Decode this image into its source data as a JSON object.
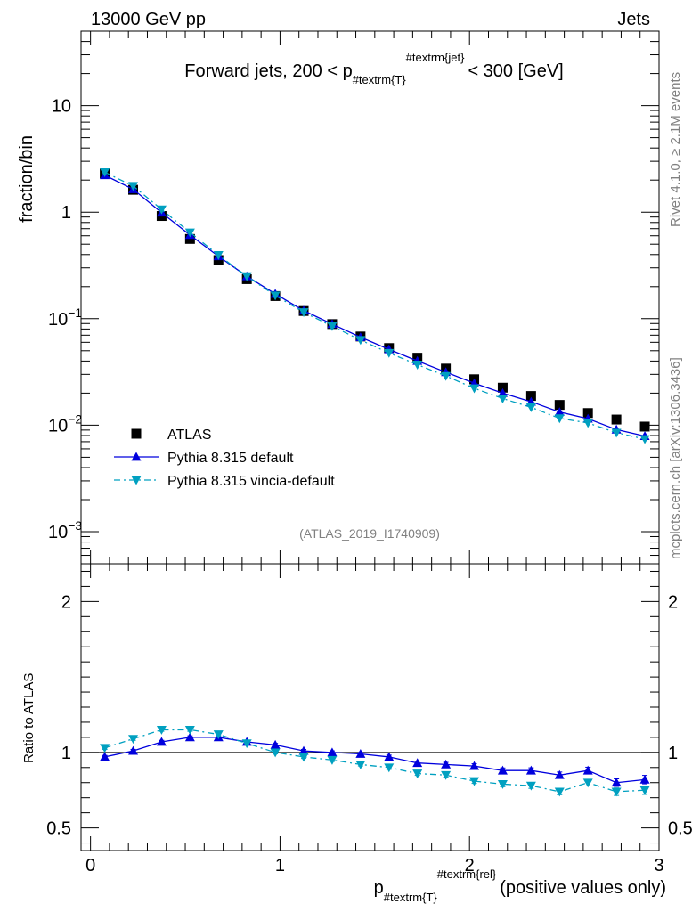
{
  "header": {
    "left": "13000 GeV pp",
    "right": "Jets"
  },
  "side_labels": {
    "rivet": "Rivet 4.1.0, ≥ 2.1M events",
    "mcplots": "mcplots.cern.ch [arXiv:1306.3436]"
  },
  "chart_data": {
    "type": "scatter",
    "title": {
      "prefix": "Forward jets, 200 < p",
      "sub": "#textrm{T}",
      "sup": "#textrm{jet}",
      "suffix": "< 300 [GeV]"
    },
    "analysis_id": "(ATLAS_2019_I1740909)",
    "xlabel": {
      "main": "p",
      "sub": "#textrm{T}",
      "sup": "#textrm{rel}",
      "suffix": "(positive values only)"
    },
    "ylabel": "fraction/bin",
    "ratio_ylabel": "Ratio to ATLAS",
    "xlim": [
      -0.05,
      3.0
    ],
    "ylim_log": [
      0.0005,
      50
    ],
    "ratio_ylim": [
      0.35,
      2.25
    ],
    "x_ticks": [
      {
        "v": 0,
        "label": "0"
      },
      {
        "v": 1,
        "label": "1"
      },
      {
        "v": 2,
        "label": "2"
      },
      {
        "v": 3,
        "label": "3"
      }
    ],
    "y_ticks": [
      {
        "v": 10,
        "label": "10"
      },
      {
        "v": 1,
        "label": "1"
      },
      {
        "v": 0.1,
        "base": "10",
        "exp": "−1"
      },
      {
        "v": 0.01,
        "base": "10",
        "exp": "−2"
      },
      {
        "v": 0.001,
        "base": "10",
        "exp": "−3"
      }
    ],
    "ratio_ticks": [
      {
        "v": 2,
        "label": "2"
      },
      {
        "v": 1,
        "label": "1"
      },
      {
        "v": 0.5,
        "label": "0.5"
      }
    ],
    "x": [
      0.075,
      0.225,
      0.375,
      0.525,
      0.675,
      0.825,
      0.975,
      1.125,
      1.275,
      1.425,
      1.575,
      1.725,
      1.875,
      2.025,
      2.175,
      2.325,
      2.475,
      2.625,
      2.775,
      2.925
    ],
    "series": [
      {
        "name": "ATLAS",
        "style": "data",
        "color": "#000000",
        "values": [
          2.3,
          1.62,
          0.92,
          0.56,
          0.355,
          0.235,
          0.163,
          0.118,
          0.089,
          0.068,
          0.053,
          0.043,
          0.034,
          0.027,
          0.0225,
          0.0188,
          0.0155,
          0.013,
          0.0113,
          0.0097
        ]
      },
      {
        "name": "Pythia 8.315 default",
        "style": "solid",
        "color": "#0000dd",
        "values": [
          2.22,
          1.64,
          0.99,
          0.61,
          0.385,
          0.25,
          0.171,
          0.119,
          0.089,
          0.067,
          0.0515,
          0.0401,
          0.0315,
          0.0248,
          0.02,
          0.0166,
          0.0133,
          0.0115,
          0.0091,
          0.0079
        ],
        "ratio": [
          0.97,
          1.01,
          1.07,
          1.1,
          1.1,
          1.07,
          1.05,
          1.01,
          1.0,
          0.99,
          0.97,
          0.93,
          0.92,
          0.91,
          0.88,
          0.88,
          0.85,
          0.88,
          0.8,
          0.82
        ],
        "ratio_err": [
          0.01,
          0.01,
          0.01,
          0.01,
          0.01,
          0.01,
          0.01,
          0.01,
          0.01,
          0.01,
          0.012,
          0.012,
          0.014,
          0.015,
          0.017,
          0.018,
          0.02,
          0.022,
          0.025,
          0.028
        ]
      },
      {
        "name": "Pythia 8.315 vincia-default",
        "style": "dashdot",
        "color": "#00a0c0",
        "values": [
          2.37,
          1.76,
          1.06,
          0.645,
          0.395,
          0.25,
          0.165,
          0.115,
          0.085,
          0.063,
          0.0477,
          0.037,
          0.029,
          0.0222,
          0.0178,
          0.0147,
          0.0116,
          0.0105,
          0.0085,
          0.0074
        ],
        "ratio": [
          1.03,
          1.09,
          1.15,
          1.15,
          1.12,
          1.06,
          1.0,
          0.97,
          0.95,
          0.92,
          0.9,
          0.86,
          0.85,
          0.81,
          0.79,
          0.78,
          0.74,
          0.8,
          0.74,
          0.75
        ],
        "ratio_err": [
          0.01,
          0.01,
          0.01,
          0.01,
          0.01,
          0.01,
          0.01,
          0.01,
          0.01,
          0.01,
          0.012,
          0.012,
          0.014,
          0.015,
          0.017,
          0.018,
          0.02,
          0.022,
          0.025,
          0.028
        ]
      }
    ],
    "legend_position": "bottom-left"
  }
}
